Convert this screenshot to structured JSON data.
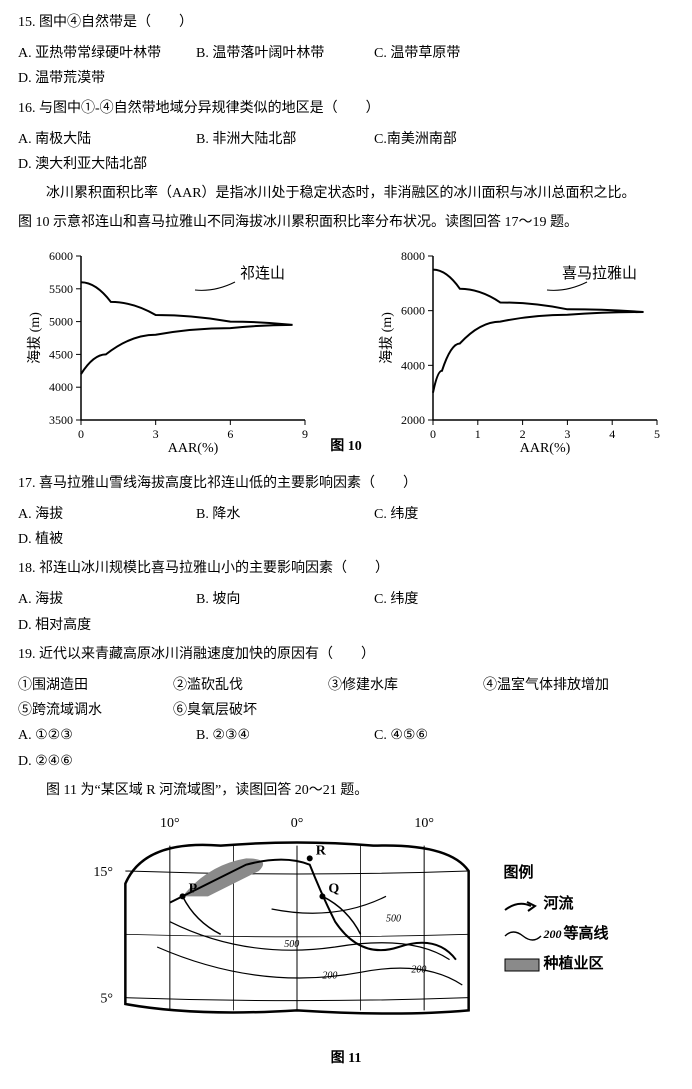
{
  "q15": {
    "stem": "15. 图中④自然带是（　　）",
    "opts": {
      "A": "A. 亚热带常绿硬叶林带",
      "B": "B. 温带落叶阔叶林带",
      "C": "C. 温带草原带",
      "D": "D. 温带荒漠带"
    }
  },
  "q16": {
    "stem": "16. 与图中①-④自然带地域分异规律类似的地区是（　　）",
    "opts": {
      "A": "A. 南极大陆",
      "B": "B. 非洲大陆北部",
      "C": "C.南美洲南部",
      "D": "D. 澳大利亚大陆北部"
    }
  },
  "passage1": {
    "p1": "冰川累积面积比率（AAR）是指冰川处于稳定状态时，非消融区的冰川面积与冰川总面积之比。",
    "p2": "图 10 示意祁连山和喜马拉雅山不同海拔冰川累积面积比率分布状况。读图回答 17～19 题。"
  },
  "chart_left": {
    "title": "祁连山",
    "y_label": "海拔 (m)",
    "x_label": "AAR(%)",
    "y_ticks": [
      "3500",
      "4000",
      "4500",
      "5000",
      "5500",
      "6000"
    ],
    "x_ticks": [
      "0",
      "3",
      "6",
      "9"
    ],
    "series": {
      "type": "line",
      "color": "#000000",
      "stroke_width": 2,
      "points_xy": [
        [
          0,
          5600
        ],
        [
          1.2,
          5300
        ],
        [
          3.0,
          5100
        ],
        [
          6.0,
          5000
        ],
        [
          8.5,
          4950
        ],
        [
          6.0,
          4900
        ],
        [
          3.0,
          4800
        ],
        [
          1.0,
          4500
        ],
        [
          0,
          4200
        ]
      ]
    },
    "axis_color": "#000000",
    "tick_fontsize": 12,
    "label_fontsize": 14
  },
  "chart_right": {
    "title": "喜马拉雅山",
    "y_label": "海拔 (m)",
    "x_label": "AAR(%)",
    "y_ticks": [
      "2000",
      "4000",
      "6000",
      "8000"
    ],
    "x_ticks": [
      "0",
      "1",
      "2",
      "3",
      "4",
      "5"
    ],
    "series": {
      "type": "line",
      "color": "#000000",
      "stroke_width": 2,
      "points_xy": [
        [
          0,
          7500
        ],
        [
          0.6,
          6800
        ],
        [
          1.5,
          6300
        ],
        [
          3.0,
          6050
        ],
        [
          4.7,
          5950
        ],
        [
          3.0,
          5850
        ],
        [
          1.5,
          5600
        ],
        [
          0.6,
          4800
        ],
        [
          0.2,
          3800
        ],
        [
          0,
          3000
        ]
      ]
    },
    "axis_color": "#000000",
    "tick_fontsize": 12,
    "label_fontsize": 14
  },
  "fig10_caption": "图 10",
  "q17": {
    "stem": "17. 喜马拉雅山雪线海拔高度比祁连山低的主要影响因素（　　）",
    "opts": {
      "A": "A. 海拔",
      "B": "B. 降水",
      "C": "C. 纬度",
      "D": "D. 植被"
    }
  },
  "q18": {
    "stem": "18. 祁连山冰川规模比喜马拉雅山小的主要影响因素（　　）",
    "opts": {
      "A": "A. 海拔",
      "B": "B. 坡向",
      "C": "C. 纬度",
      "D": "D. 相对高度"
    }
  },
  "q19": {
    "stem": "19. 近代以来青藏高原冰川消融速度加快的原因有（　　）",
    "subs": {
      "s1": "①围湖造田",
      "s2": "②滥砍乱伐",
      "s3": "③修建水库",
      "s4": "④温室气体排放增加",
      "s5": "⑤跨流域调水",
      "s6": "⑥臭氧层破坏"
    },
    "opts": {
      "A": "A. ①②③",
      "B": "B. ②③④",
      "C": "C. ④⑤⑥",
      "D": "D. ②④⑥"
    }
  },
  "passage2": {
    "p1": "图 11 为“某区域 R 河流域图”，读图回答 20～21 题。"
  },
  "fig11_caption": "图 11",
  "map": {
    "lon_labels": [
      "10°",
      "0°",
      "10°"
    ],
    "lat_labels": [
      "15°",
      "5°"
    ],
    "points": {
      "P": "P",
      "Q": "Q",
      "R": "R"
    },
    "contour_labels": [
      "200",
      "500",
      "500",
      "200"
    ],
    "legend": {
      "title": "图例",
      "river": "河流",
      "contour": "等高线",
      "contour_sample": "200",
      "farm": "种植业区"
    },
    "colors": {
      "border": "#000000",
      "grid": "#000000",
      "river": "#000000",
      "contour": "#000000",
      "farm_fill": "#8a8a8a",
      "background": "#ffffff"
    },
    "line_widths": {
      "border": 2.5,
      "grid": 1,
      "river": 2,
      "contour": 1.2
    }
  }
}
